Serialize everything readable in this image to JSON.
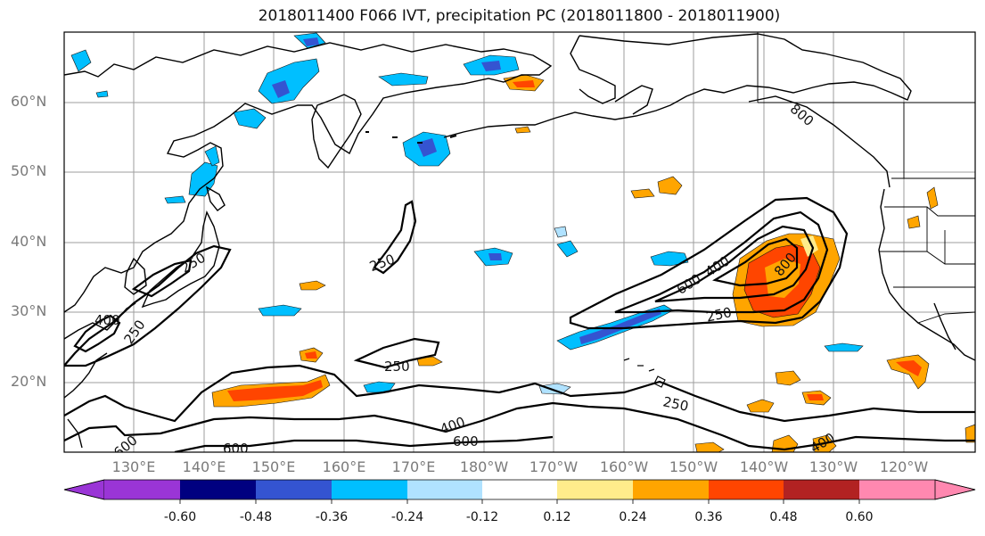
{
  "title": "2018011400 F066 IVT, precipitation PC (2018011800 - 2018011900)",
  "lat_labels": [
    "60°N",
    "50°N",
    "40°N",
    "30°N",
    "20°N"
  ],
  "lon_labels": [
    "130°E",
    "140°E",
    "150°E",
    "160°E",
    "170°E",
    "180°W",
    "170°W",
    "160°W",
    "150°W",
    "140°W",
    "130°W",
    "120°W"
  ],
  "colorbar": {
    "tick_labels": [
      "-0.60",
      "-0.48",
      "-0.36",
      "-0.24",
      "-0.12",
      "0.12",
      "0.24",
      "0.36",
      "0.48",
      "0.60"
    ],
    "colors": [
      "#9a35d6",
      "#000080",
      "#3454d1",
      "#00bfff",
      "#b0e2ff",
      "#ffffff",
      "#ffec8b",
      "#ffa500",
      "#ff4500",
      "#b22222",
      "#ff88b0"
    ]
  },
  "contour_labels": {
    "c250_west": "250",
    "c400_west": "400",
    "c250_west2": "250",
    "c250_mid": "250",
    "c250_south": "250",
    "c400_south": "400",
    "c600_south": "600",
    "c600_sw": "600",
    "c600_ar": "600",
    "c400_ar": "400",
    "c800_ar": "800",
    "c250_ar": "250",
    "c250_se": "250",
    "c400_se": "400",
    "c600_tl": "600",
    "c800_coast": "800"
  }
}
